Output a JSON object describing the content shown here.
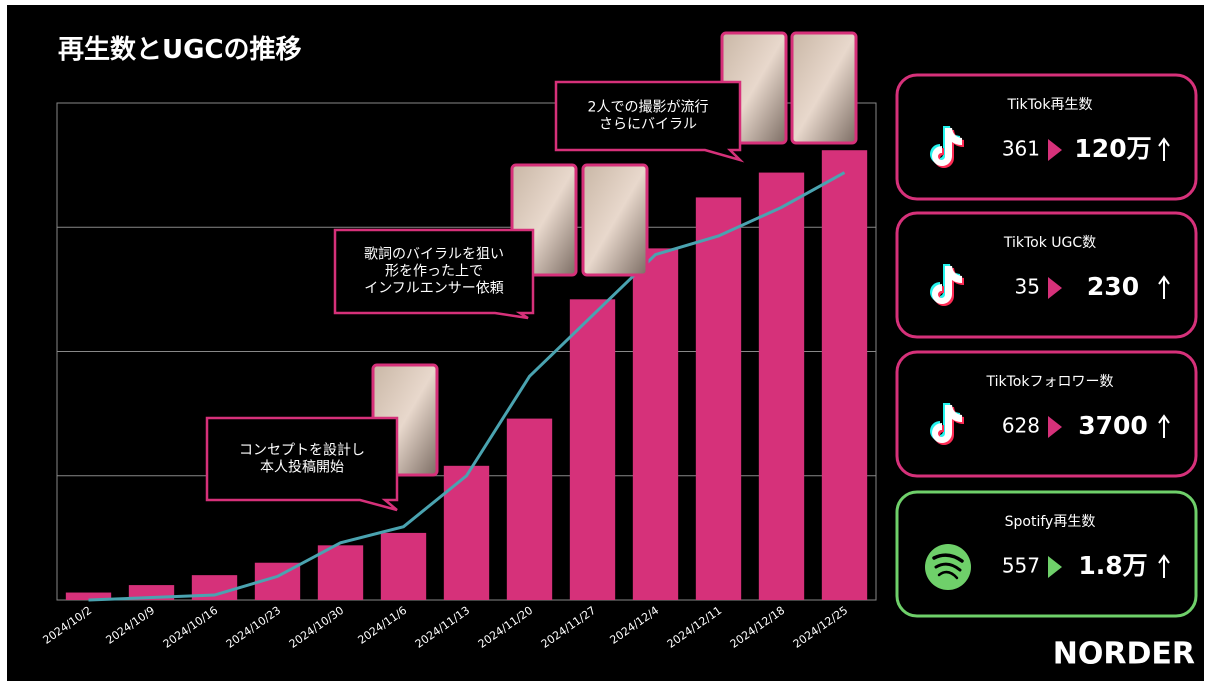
{
  "chart_data": {
    "type": "bar-line",
    "title": "再生数とUGCの推移",
    "categories": [
      "2024/10/2",
      "2024/10/9",
      "2024/10/16",
      "2024/10/23",
      "2024/10/30",
      "2024/11/6",
      "2024/11/13",
      "2024/11/20",
      "2024/11/27",
      "2024/12/4",
      "2024/12/11",
      "2024/12/18",
      "2024/12/25"
    ],
    "series": [
      {
        "type": "bar",
        "color": "#d6317a",
        "values": [
          0.06,
          0.12,
          0.2,
          0.3,
          0.44,
          0.54,
          1.08,
          1.46,
          2.42,
          2.83,
          3.24,
          3.44,
          3.62
        ]
      },
      {
        "type": "line",
        "color": "#4aa3b0",
        "values": [
          0,
          0.02,
          0.04,
          0.19,
          0.46,
          0.59,
          1.0,
          1.8,
          2.29,
          2.78,
          2.93,
          3.16,
          3.44
        ]
      }
    ],
    "ylim": [
      0,
      4
    ],
    "yticks": [
      0,
      1,
      2,
      3,
      4
    ],
    "grid": true,
    "annotations": [
      {
        "lines": [
          "コンセプトを設計し",
          "本人投稿開始"
        ]
      },
      {
        "lines": [
          "歌詞のバイラルを狙い",
          "形を作った上で",
          "インフルエンサー依頼"
        ]
      },
      {
        "lines": [
          "2人での撮影が流行",
          "さらにバイラル"
        ]
      }
    ]
  },
  "cards": [
    {
      "title": "TikTok再生数",
      "from": "361",
      "to": "120万",
      "icon": "tiktok"
    },
    {
      "title": "TikTok UGC数",
      "from": "35",
      "to": "230",
      "icon": "tiktok"
    },
    {
      "title": "TikTokフォロワー数",
      "from": "628",
      "to": "3700",
      "icon": "tiktok"
    },
    {
      "title": "Spotify再生数",
      "from": "557",
      "to": "1.8万",
      "icon": "spotify"
    }
  ],
  "logo": "NORDER"
}
